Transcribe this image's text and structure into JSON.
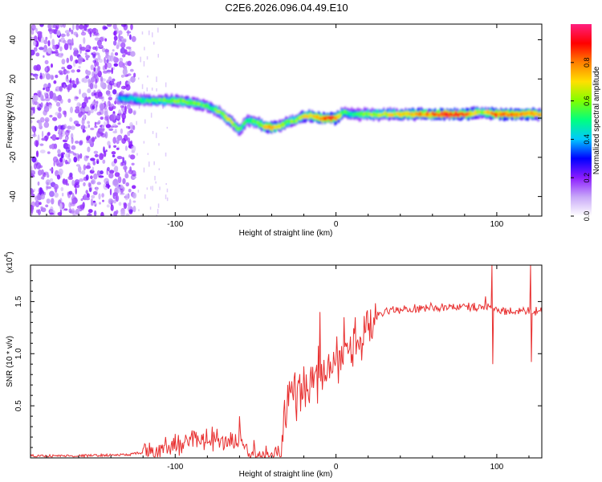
{
  "title": "C2E6.2026.096.04.49.E10",
  "chart_data": [
    {
      "type": "heatmap",
      "name": "spectrogram",
      "xlabel": "Height of straight line (km)",
      "ylabel": "Frequency (Hz)",
      "xlim": [
        -190,
        128
      ],
      "ylim": [
        -50,
        48
      ],
      "xticks": [
        -100,
        0,
        100
      ],
      "xtick_labels": [
        "-100",
        "0",
        "100"
      ],
      "yticks": [
        -40,
        -20,
        0,
        20,
        40
      ],
      "ytick_labels": [
        "-40",
        "-20",
        "0",
        "20",
        "40"
      ],
      "colorbar": {
        "label": "Normalized spectral amplitude",
        "range": [
          0,
          1
        ],
        "ticks": [
          0.0,
          0.2,
          0.4,
          0.6,
          0.8
        ],
        "tick_labels": [
          "0.0",
          "0.2",
          "0.4",
          "0.6",
          "0.8"
        ],
        "colors": [
          "#ffffff",
          "#c8a8f8",
          "#8c1cff",
          "#0000ff",
          "#00c8ff",
          "#00ff80",
          "#80ff00",
          "#ffe000",
          "#ff8000",
          "#ff0000",
          "#ff2080"
        ]
      },
      "ridge": {
        "x": [
          -135,
          -128,
          -120,
          -110,
          -100,
          -90,
          -80,
          -72,
          -65,
          -60,
          -55,
          -50,
          -45,
          -40,
          -35,
          -30,
          -25,
          -20,
          -15,
          -10,
          -5,
          0,
          5,
          10,
          20,
          30,
          40,
          50,
          60,
          70,
          80,
          90,
          100,
          110,
          120,
          128
        ],
        "frequency": [
          10,
          10,
          9,
          9,
          9,
          8,
          6,
          3,
          -2,
          -6,
          -1,
          -2,
          -4,
          -5,
          -4,
          -2,
          -1,
          1,
          1,
          0,
          0,
          0,
          3,
          2,
          2,
          2,
          2,
          2,
          2,
          2,
          2,
          3,
          2,
          2,
          2,
          2
        ],
        "amplitude": [
          0.4,
          0.45,
          0.5,
          0.55,
          0.6,
          0.6,
          0.55,
          0.6,
          0.65,
          0.55,
          0.5,
          0.55,
          0.7,
          0.75,
          0.65,
          0.6,
          0.6,
          0.7,
          0.75,
          0.85,
          0.9,
          0.85,
          0.55,
          0.5,
          0.6,
          0.65,
          0.7,
          0.75,
          0.85,
          0.9,
          0.85,
          0.6,
          0.85,
          0.8,
          0.8,
          0.75
        ]
      },
      "noise_region_x": [
        -190,
        -125
      ]
    },
    {
      "type": "line",
      "name": "snr",
      "xlabel": "Height of straight line (km)",
      "ylabel": "SNR (10 * v/v)",
      "y_multiplier_label": "(x10",
      "y_multiplier_exponent": "4",
      "y_multiplier_suffix": ")",
      "xlim": [
        -190,
        128
      ],
      "ylim": [
        0,
        1.85
      ],
      "xticks": [
        -100,
        0,
        100
      ],
      "xtick_labels": [
        "-100",
        "0",
        "100"
      ],
      "yticks": [
        0.5,
        1.0,
        1.5
      ],
      "ytick_labels": [
        "0.5",
        "1.0",
        "1.5"
      ],
      "series": [
        {
          "name": "SNR",
          "color": "#e83030",
          "x": [
            -190,
            -160,
            -130,
            -120,
            -110,
            -100,
            -90,
            -80,
            -70,
            -60,
            -55,
            -50,
            -45,
            -40,
            -35,
            -32,
            -30,
            -25,
            -20,
            -15,
            -10,
            -5,
            0,
            5,
            10,
            15,
            20,
            25,
            30,
            40,
            50,
            60,
            70,
            80,
            90,
            95,
            100,
            110,
            118,
            120,
            122,
            128
          ],
          "y": [
            0.02,
            0.02,
            0.03,
            0.05,
            0.08,
            0.12,
            0.15,
            0.16,
            0.18,
            0.16,
            0.08,
            0.05,
            0.04,
            0.04,
            0.05,
            0.35,
            0.55,
            0.6,
            0.7,
            0.75,
            0.8,
            0.85,
            0.9,
            0.95,
            1.05,
            1.15,
            1.25,
            1.35,
            1.4,
            1.42,
            1.43,
            1.44,
            1.45,
            1.45,
            1.45,
            1.45,
            1.42,
            1.4,
            1.4,
            1.42,
            1.4,
            1.4
          ],
          "spikes": [
            {
              "x": -98,
              "y": 0.22
            },
            {
              "x": -88,
              "y": 0.25
            },
            {
              "x": -77,
              "y": 0.3
            },
            {
              "x": -60,
              "y": 0.4
            },
            {
              "x": -30,
              "y": 0.7
            },
            {
              "x": -10,
              "y": 1.4
            },
            {
              "x": 5,
              "y": 1.35
            },
            {
              "x": 12,
              "y": 1.35
            },
            {
              "x": 93,
              "y": 1.55
            },
            {
              "x": 97,
              "y": 1.85
            },
            {
              "x": 97.5,
              "y": 0.9
            },
            {
              "x": 121,
              "y": 1.85
            },
            {
              "x": 121.5,
              "y": 0.92
            }
          ]
        }
      ]
    }
  ]
}
